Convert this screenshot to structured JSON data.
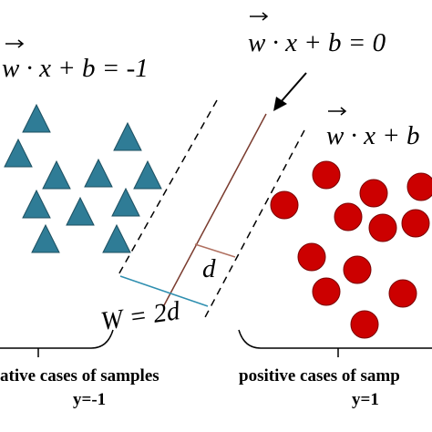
{
  "equations": {
    "hyperplane": "w · x + b = 0",
    "negative_margin": "w · x + b = -1",
    "positive_margin": "w · x + b"
  },
  "margin": {
    "half": "d",
    "full": "W = 2d"
  },
  "groups": {
    "negative": {
      "label": "ative cases of samples",
      "y": "y=-1"
    },
    "positive": {
      "label": "positive cases of samp",
      "y": "y=1"
    }
  }
}
